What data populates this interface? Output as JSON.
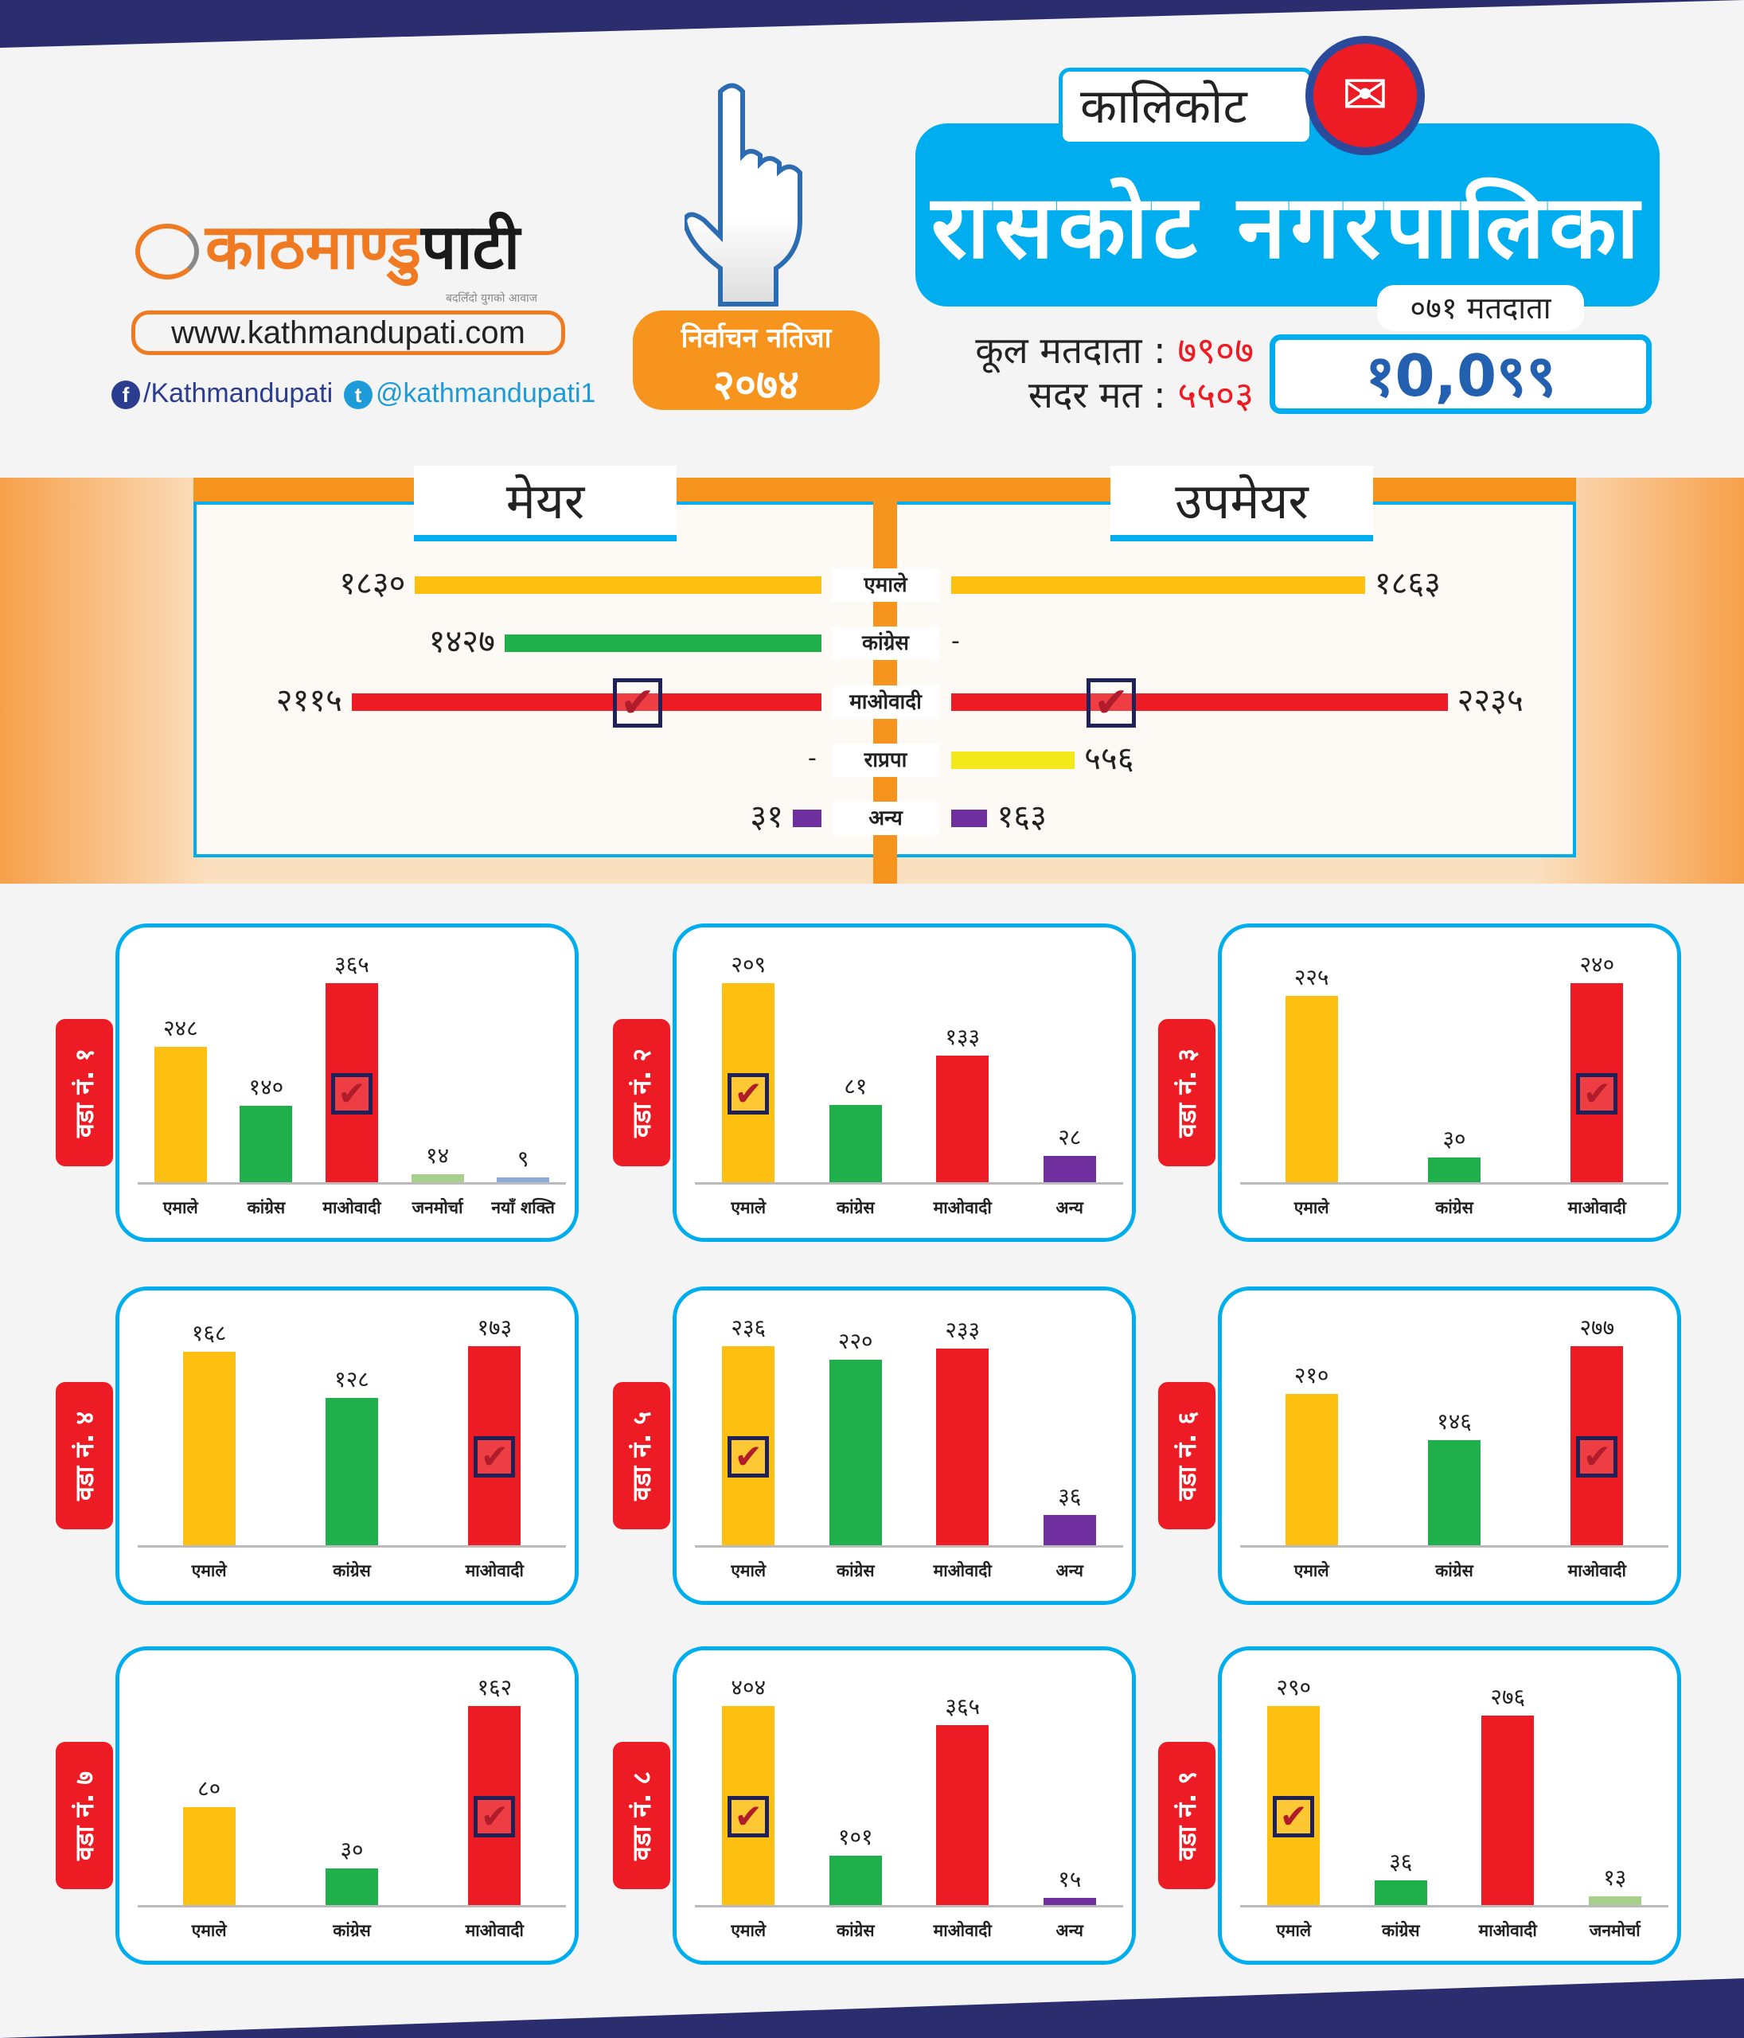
{
  "header": {
    "logo_text_orange": "काठमाण्डु",
    "logo_text_black": "पाटी",
    "logo_tagline": "बदलिँदो युगको आवाज",
    "website": "www.kathmandupati.com",
    "facebook": "/Kathmandupati",
    "twitter": "@kathmandupati1",
    "badge_line1": "निर्वाचन नतिजा",
    "badge_line2": "२०७४",
    "district": "कालिकोट",
    "municipality": "रासकोट नगरपालिका",
    "total_voters_label": "कूल मतदाता :",
    "total_voters": "७९०७",
    "valid_votes_label": "सदर मत :",
    "valid_votes": "५५०३",
    "voters_071_label": "०७१ मतदाता",
    "voters_071": "१0,0९९"
  },
  "colors": {
    "uml": "#FDBF10",
    "congress": "#1FB04B",
    "maoist": "#ED1C24",
    "rpp": "#F2E81A",
    "other": "#6F2F9F",
    "janamorcha": "#A8D08D",
    "naya_shakti": "#8EA9DB",
    "accent": "#00AEEF",
    "orange": "#F7941D"
  },
  "chart_data": [
    {
      "type": "bar",
      "title": "मेयर / उपमेयर",
      "mayor_label": "मेयर",
      "deputy_label": "उपमेयर",
      "categories": [
        "एमाले",
        "कांग्रेस",
        "माओवादी",
        "राप्रपा",
        "अन्य"
      ],
      "series": [
        {
          "name": "मेयर",
          "values": [
            1830,
            1427,
            2115,
            null,
            31
          ],
          "labels": [
            "१८३०",
            "१४२७",
            "२११५",
            "-",
            "३१"
          ],
          "winner": 2
        },
        {
          "name": "उपमेयर",
          "values": [
            1863,
            null,
            2235,
            556,
            163
          ],
          "labels": [
            "१८६३",
            "-",
            "२२३५",
            "५५६",
            "१६३"
          ],
          "winner": 2
        }
      ]
    },
    {
      "type": "bar",
      "title": "वडा नं. १",
      "categories": [
        "एमाले",
        "कांग्रेस",
        "माओवादी",
        "जनमोर्चा",
        "नयाँ शक्ति"
      ],
      "values": [
        248,
        140,
        365,
        14,
        9
      ],
      "labels": [
        "२४८",
        "१४०",
        "३६५",
        "१४",
        "९"
      ],
      "winner": 2,
      "colors": [
        "uml",
        "congress",
        "maoist",
        "janamorcha",
        "naya_shakti"
      ]
    },
    {
      "type": "bar",
      "title": "वडा नं. २",
      "categories": [
        "एमाले",
        "कांग्रेस",
        "माओवादी",
        "अन्य"
      ],
      "values": [
        209,
        81,
        133,
        28
      ],
      "labels": [
        "२०९",
        "८१",
        "१३३",
        "२८"
      ],
      "winner": 0,
      "colors": [
        "uml",
        "congress",
        "maoist",
        "other"
      ]
    },
    {
      "type": "bar",
      "title": "वडा नं. ३",
      "categories": [
        "एमाले",
        "कांग्रेस",
        "माओवादी"
      ],
      "values": [
        225,
        30,
        240
      ],
      "labels": [
        "२२५",
        "३०",
        "२४०"
      ],
      "winner": 2,
      "colors": [
        "uml",
        "congress",
        "maoist"
      ]
    },
    {
      "type": "bar",
      "title": "वडा नं. ४",
      "categories": [
        "एमाले",
        "कांग्रेस",
        "माओवादी"
      ],
      "values": [
        168,
        128,
        173
      ],
      "labels": [
        "१६८",
        "१२८",
        "१७३"
      ],
      "winner": 2,
      "colors": [
        "uml",
        "congress",
        "maoist"
      ]
    },
    {
      "type": "bar",
      "title": "वडा नं. ५",
      "categories": [
        "एमाले",
        "कांग्रेस",
        "माओवादी",
        "अन्य"
      ],
      "values": [
        236,
        220,
        233,
        36
      ],
      "labels": [
        "२३६",
        "२२०",
        "२३३",
        "३६"
      ],
      "winner": 0,
      "colors": [
        "uml",
        "congress",
        "maoist",
        "other"
      ]
    },
    {
      "type": "bar",
      "title": "वडा नं. ६",
      "categories": [
        "एमाले",
        "कांग्रेस",
        "माओवादी"
      ],
      "values": [
        210,
        146,
        277
      ],
      "labels": [
        "२१०",
        "१४६",
        "२७७"
      ],
      "winner": 2,
      "colors": [
        "uml",
        "congress",
        "maoist"
      ]
    },
    {
      "type": "bar",
      "title": "वडा नं. ७",
      "categories": [
        "एमाले",
        "कांग्रेस",
        "माओवादी"
      ],
      "values": [
        80,
        30,
        162
      ],
      "labels": [
        "८०",
        "३०",
        "१६२"
      ],
      "winner": 2,
      "colors": [
        "uml",
        "congress",
        "maoist"
      ]
    },
    {
      "type": "bar",
      "title": "वडा नं. ८",
      "categories": [
        "एमाले",
        "कांग्रेस",
        "माओवादी",
        "अन्य"
      ],
      "values": [
        404,
        101,
        365,
        15
      ],
      "labels": [
        "४०४",
        "१०१",
        "३६५",
        "१५"
      ],
      "winner": 0,
      "colors": [
        "uml",
        "congress",
        "maoist",
        "other"
      ]
    },
    {
      "type": "bar",
      "title": "वडा नं. ९",
      "categories": [
        "एमाले",
        "कांग्रेस",
        "माओवादी",
        "जनमोर्चा"
      ],
      "values": [
        290,
        36,
        276,
        13
      ],
      "labels": [
        "२९०",
        "३६",
        "२७६",
        "१३"
      ],
      "winner": 0,
      "colors": [
        "uml",
        "congress",
        "maoist",
        "janamorcha"
      ]
    }
  ]
}
